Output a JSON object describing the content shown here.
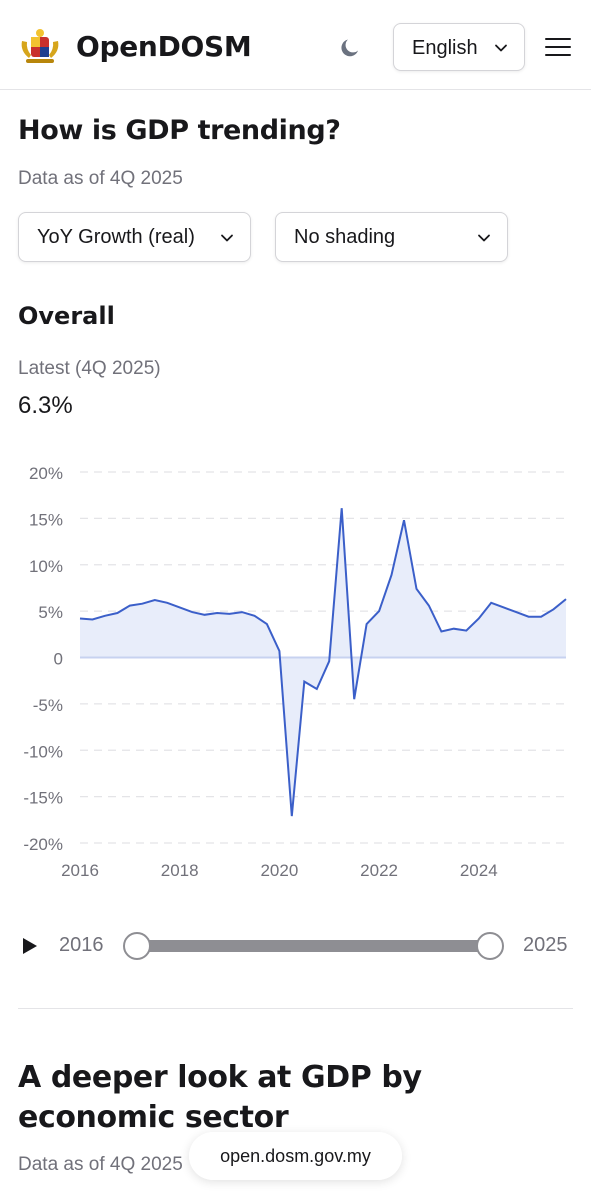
{
  "header": {
    "brand": "OpenDOSM",
    "language": "English",
    "icons": {
      "logo": "coat-of-arms-icon",
      "theme": "moon-icon",
      "menu": "hamburger-menu-icon"
    }
  },
  "section1": {
    "title": "How is GDP trending?",
    "subtitle": "Data as of 4Q 2025",
    "filters": {
      "measure": "YoY Growth (real)",
      "shading": "No shading"
    }
  },
  "overall": {
    "title": "Overall",
    "latest_label": "Latest (4Q 2025)",
    "latest_value": "6.3%"
  },
  "chart_data": {
    "type": "area",
    "title": "",
    "xlabel": "",
    "ylabel": "",
    "ylim": [
      -20,
      20
    ],
    "yticks": [
      "20%",
      "15%",
      "10%",
      "5%",
      "0",
      "-5%",
      "-10%",
      "-15%",
      "-20%"
    ],
    "xticks": [
      "2016",
      "2018",
      "2020",
      "2022",
      "2024"
    ],
    "grid": "horizontal dashed",
    "colors": {
      "line": "#3b5fc9",
      "fill": "#e8edfa"
    },
    "series": [
      {
        "x": [
          "2016-Q1",
          "2016-Q2",
          "2016-Q3",
          "2016-Q4",
          "2017-Q1",
          "2017-Q2",
          "2017-Q3",
          "2017-Q4",
          "2018-Q1",
          "2018-Q2",
          "2018-Q3",
          "2018-Q4",
          "2019-Q1",
          "2019-Q2",
          "2019-Q3",
          "2019-Q4",
          "2020-Q1",
          "2020-Q2",
          "2020-Q3",
          "2020-Q4",
          "2021-Q1",
          "2021-Q2",
          "2021-Q3",
          "2021-Q4",
          "2022-Q1",
          "2022-Q2",
          "2022-Q3",
          "2022-Q4",
          "2023-Q1",
          "2023-Q2",
          "2023-Q3",
          "2023-Q4",
          "2024-Q1",
          "2024-Q2",
          "2024-Q3",
          "2024-Q4",
          "2025-Q1",
          "2025-Q2",
          "2025-Q3",
          "2025-Q4"
        ],
        "values": [
          4.2,
          4.1,
          4.5,
          4.8,
          5.6,
          5.8,
          6.2,
          5.9,
          5.4,
          4.9,
          4.6,
          4.8,
          4.7,
          4.9,
          4.5,
          3.6,
          0.7,
          -17.1,
          -2.6,
          -3.4,
          -0.4,
          16.1,
          -4.5,
          3.6,
          5.0,
          8.9,
          14.8,
          7.4,
          5.6,
          2.8,
          3.1,
          2.9,
          4.2,
          5.9,
          5.4,
          4.9,
          4.4,
          4.4,
          5.2,
          6.3
        ]
      }
    ]
  },
  "slider": {
    "start_label": "2016",
    "end_label": "2025",
    "play_icon": "play-icon"
  },
  "section2": {
    "title": "A deeper look at GDP by economic sector",
    "subtitle": "Data as of 4Q 2025"
  },
  "browser": {
    "url": "open.dosm.gov.my"
  }
}
